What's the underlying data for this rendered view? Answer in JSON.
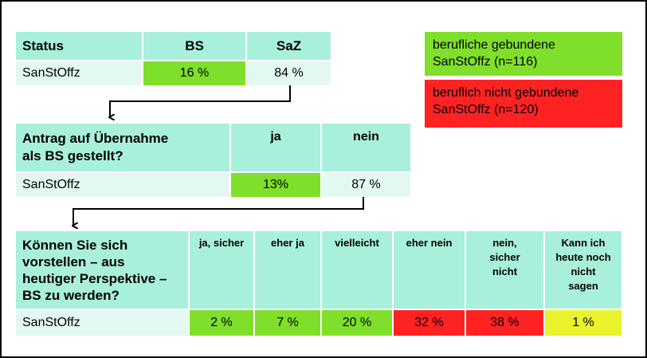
{
  "table1": {
    "header": [
      [
        "Status"
      ],
      [
        "BS"
      ],
      [
        "SaZ"
      ]
    ],
    "rows": [
      [
        "SanStOffz",
        "16 %",
        "84 %"
      ]
    ]
  },
  "legend": [
    [
      "berufliche gebundene",
      "SanStOffz (n=116)"
    ],
    [
      "beruflich nicht gebundene",
      "SanStOffz (n=120)"
    ]
  ],
  "table2": {
    "header": [
      [
        "Antrag auf Übernahme",
        "als BS gestellt?"
      ],
      [
        "ja"
      ],
      [
        "nein"
      ]
    ],
    "rows": [
      [
        "SanStOffz",
        "13%",
        "87 %"
      ]
    ]
  },
  "table3": {
    "header": [
      [
        "Können Sie sich",
        "vorstellen – aus",
        "heutiger Perspektive –",
        "BS zu werden?"
      ],
      [
        "ja, sicher"
      ],
      [
        "eher ja"
      ],
      [
        "vielleicht"
      ],
      [
        "eher nein"
      ],
      [
        "nein,",
        "sicher",
        "nicht"
      ],
      [
        "Kann ich",
        "heute noch",
        "nicht",
        "sagen"
      ]
    ],
    "rows": [
      [
        "SanStOffz",
        "2 %",
        "7 %",
        "20 %",
        "32 %",
        "38 %",
        "1 %"
      ]
    ]
  }
}
